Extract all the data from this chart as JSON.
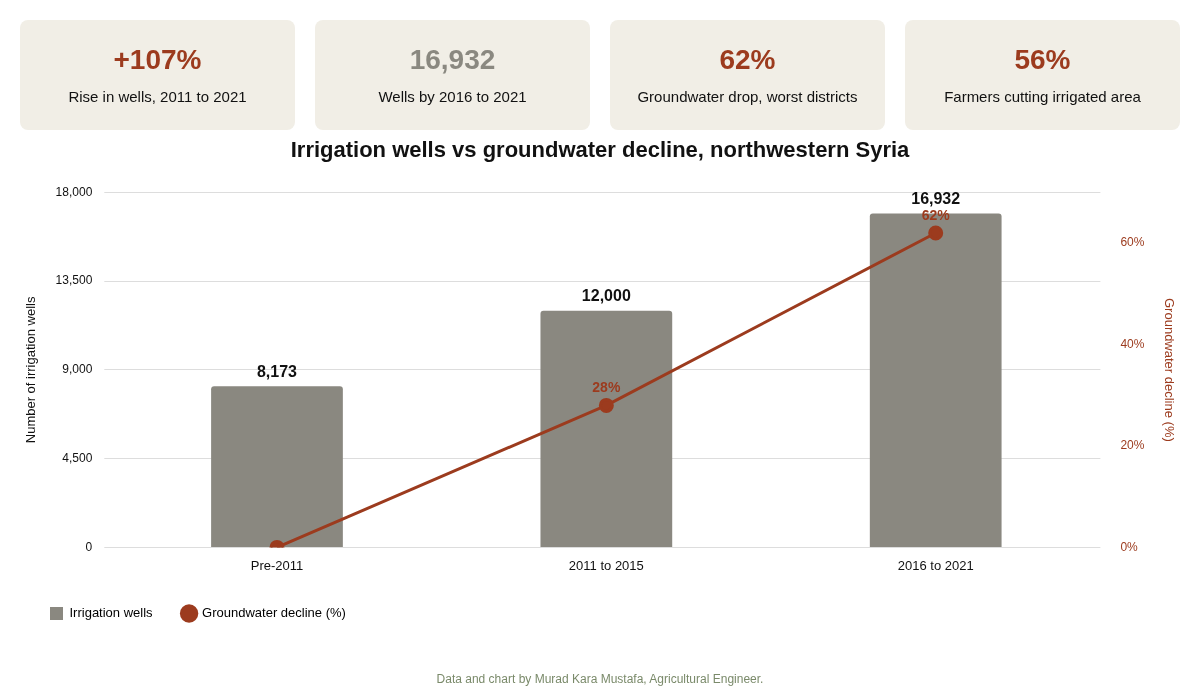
{
  "chart_data": [
    {
      "type": "other",
      "title": "+107%",
      "subtitle": "Rise in wells, 2011 to 2021",
      "color": "#9c3b1e"
    },
    {
      "type": "other",
      "title": "16,932",
      "subtitle": "Wells by 2016 to 2021",
      "color": "#8a8880"
    },
    {
      "type": "other",
      "title": "62%",
      "subtitle": "Groundwater drop, worst districts",
      "color": "#9c3b1e"
    },
    {
      "type": "other",
      "title": "56%",
      "subtitle": "Farmers cutting irrigated area",
      "color": "#9c3b1e"
    },
    {
      "type": "bar",
      "title": "Irrigation wells vs groundwater decline, northwestern Syria",
      "categories": [
        "Pre-2011",
        "2011 to 2015",
        "2016 to 2021"
      ],
      "series": [
        {
          "name": "Irrigation wells",
          "type": "bar",
          "color": "#8a8880",
          "values": [
            8173,
            12000,
            16932
          ],
          "value_labels": [
            "8,173",
            "12,000",
            "16,932"
          ]
        },
        {
          "name": "Groundwater decline (%)",
          "type": "line",
          "axis": "y2",
          "color": "#9c3b1e",
          "values": [
            0,
            28,
            62
          ],
          "value_labels": [
            null,
            "28%",
            "62%"
          ]
        }
      ],
      "ylabel": "Number of irrigation wells",
      "y2label": "Groundwater decline (%)",
      "ylim": [
        0,
        18000
      ],
      "yticks": [
        {
          "value": 0,
          "label": "0"
        },
        {
          "value": 4500,
          "label": "4,500"
        },
        {
          "value": 9000,
          "label": "9,000"
        },
        {
          "value": 13500,
          "label": "13,500"
        },
        {
          "value": 18000,
          "label": "18,000"
        }
      ],
      "y2lim": [
        0,
        70
      ],
      "y2ticks": [
        {
          "value": 0,
          "label": "0%"
        },
        {
          "value": 20,
          "label": "20%"
        },
        {
          "value": 40,
          "label": "40%"
        },
        {
          "value": 60,
          "label": "60%"
        }
      ],
      "grid": "y",
      "legend": "bottom left",
      "marker": "circle",
      "line_style": "solid",
      "annotations": [
        "Data and chart by Murad Kara Mustafa, Agricultural Engineer."
      ]
    }
  ]
}
